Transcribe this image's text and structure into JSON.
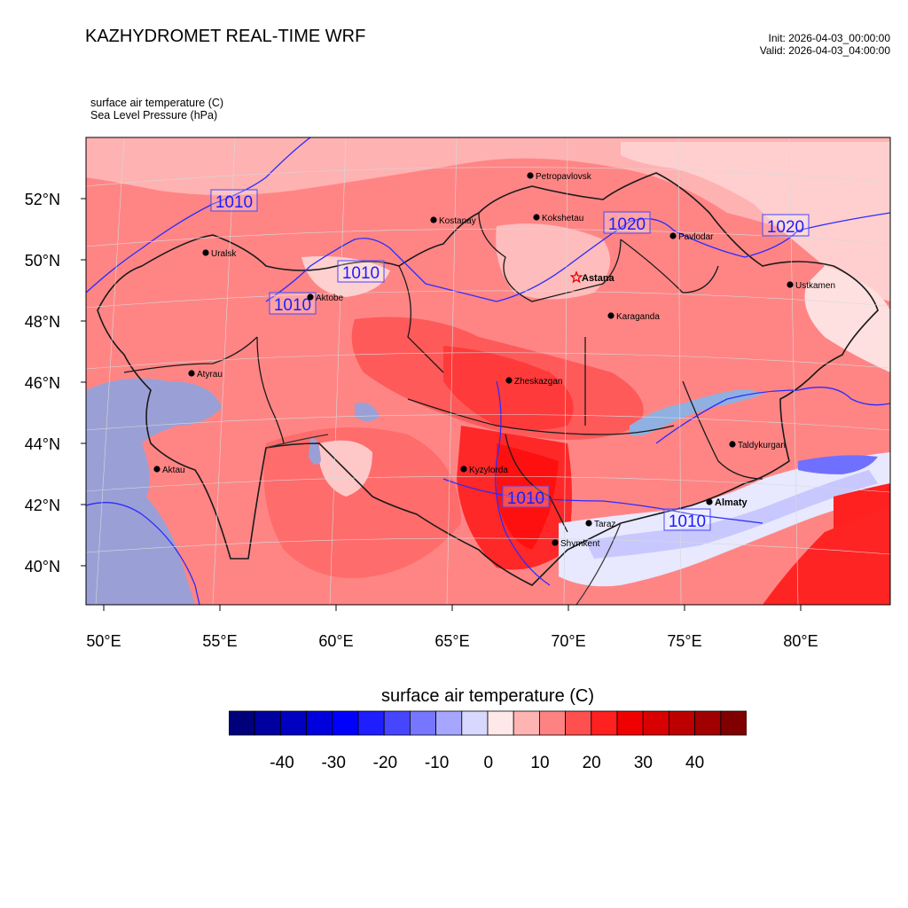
{
  "header": {
    "title": "KAZHYDROMET REAL-TIME WRF",
    "init": "Init: 2026-04-03_00:00:00",
    "valid": "Valid: 2026-04-03_04:00:00",
    "field1": "surface air temperature   (C)",
    "field2": "Sea Level Pressure   (hPa)"
  },
  "axes": {
    "lat_labels": [
      "52°N",
      "50°N",
      "48°N",
      "46°N",
      "44°N",
      "42°N",
      "40°N"
    ],
    "lon_labels": [
      "50°E",
      "55°E",
      "60°E",
      "65°E",
      "70°E",
      "75°E",
      "80°E"
    ]
  },
  "cities": [
    {
      "name": "Petropavlovsk"
    },
    {
      "name": "Kostanay"
    },
    {
      "name": "Kokshetau"
    },
    {
      "name": "Pavlodar"
    },
    {
      "name": "Uralsk"
    },
    {
      "name": "Aktobe"
    },
    {
      "name": "Astana",
      "capital": true
    },
    {
      "name": "Ustkamen"
    },
    {
      "name": "Karaganda"
    },
    {
      "name": "Atyrau"
    },
    {
      "name": "Zheskazgan"
    },
    {
      "name": "Taldykurgan"
    },
    {
      "name": "Aktau"
    },
    {
      "name": "Kyzylorda"
    },
    {
      "name": "Almaty",
      "bold": true
    },
    {
      "name": "Taraz"
    },
    {
      "name": "Shymkent"
    }
  ],
  "isobars": [
    "1010",
    "1010",
    "1010",
    "1020",
    "1020",
    "1010",
    "1010"
  ],
  "colorbar": {
    "title": "surface air temperature  (C)",
    "labels": [
      "-40",
      "-30",
      "-20",
      "-10",
      "0",
      "10",
      "20",
      "30",
      "40"
    ],
    "colors": [
      "#00007a",
      "#00009e",
      "#0000c0",
      "#0000dd",
      "#0000ff",
      "#1e1eff",
      "#4646ff",
      "#7676ff",
      "#a6a6ff",
      "#d8d8ff",
      "#ffe8e8",
      "#ffb4b4",
      "#ff8282",
      "#ff5050",
      "#ff2020",
      "#f00000",
      "#d80000",
      "#bc0000",
      "#a00000",
      "#800000"
    ]
  }
}
